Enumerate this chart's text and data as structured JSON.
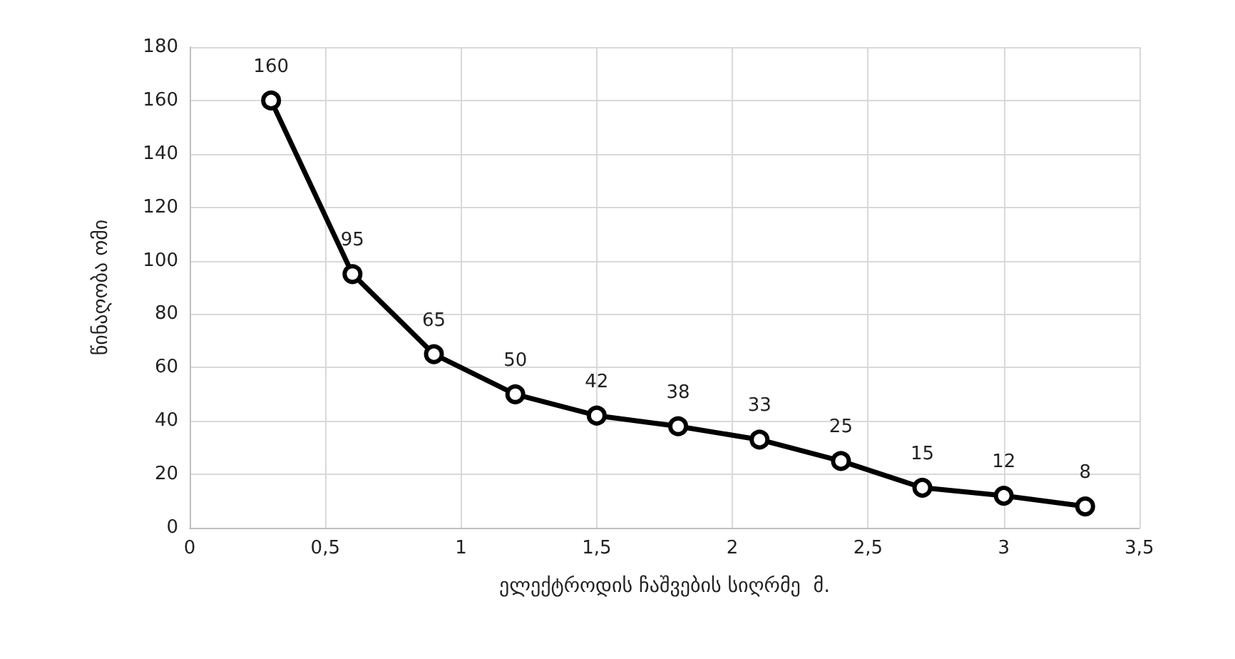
{
  "chart_data": {
    "type": "line",
    "xlabel": "ელექტროდის ჩაშვების სიღრმე  მ.",
    "ylabel": "წინაღობა ომი",
    "x": [
      0.3,
      0.6,
      0.9,
      1.2,
      1.5,
      1.8,
      2.1,
      2.4,
      2.7,
      3.0,
      3.3
    ],
    "series": [
      {
        "color": "#000000",
        "values": [
          160,
          95,
          65,
          50,
          42,
          38,
          33,
          25,
          15,
          12,
          8
        ]
      }
    ],
    "xlim": [
      0,
      3.5
    ],
    "xticks": [
      0,
      {
        "value": 0.5,
        "label": "0,5"
      },
      1,
      {
        "value": 1.5,
        "label": "1,5"
      },
      2,
      {
        "value": 2.5,
        "label": "2,5"
      },
      3,
      {
        "value": 3.5,
        "label": "3,5"
      }
    ],
    "ylim": [
      0,
      180
    ],
    "yticks": [
      0,
      20,
      40,
      60,
      80,
      100,
      120,
      140,
      160,
      180
    ],
    "grid": true,
    "marker": "circle",
    "line_style": "solid",
    "data_labels": true
  }
}
